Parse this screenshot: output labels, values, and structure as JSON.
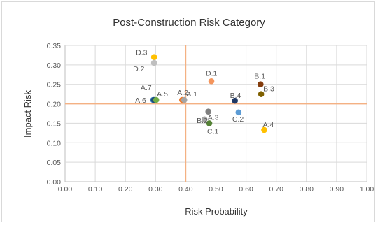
{
  "chart_data": {
    "type": "scatter",
    "title": "Post-Construction Risk Category",
    "xlabel": "Risk Probability",
    "ylabel": "Impact Risk",
    "xlim": [
      0,
      1
    ],
    "ylim": [
      0,
      0.35
    ],
    "x_ticks": [
      "0.00",
      "0.10",
      "0.20",
      "0.30",
      "0.40",
      "0.50",
      "0.60",
      "0.70",
      "0.80",
      "0.90",
      "1.00"
    ],
    "y_ticks": [
      "0.00",
      "0.05",
      "0.10",
      "0.15",
      "0.20",
      "0.25",
      "0.30",
      "0.35"
    ],
    "grid": true,
    "reference_lines": {
      "x": 0.4,
      "y": 0.2,
      "color": "#f4b183"
    },
    "points": [
      {
        "label": "D.3",
        "x": 0.295,
        "y": 0.32,
        "color": "#ffc000"
      },
      {
        "label": "D.2",
        "x": 0.295,
        "y": 0.305,
        "color": "#bfbfbf"
      },
      {
        "label": "A.7",
        "x": 0.292,
        "y": 0.21,
        "color": "#2e75b6"
      },
      {
        "label": "A.6",
        "x": 0.295,
        "y": 0.21,
        "color": "#1f4e79"
      },
      {
        "label": "A.5",
        "x": 0.302,
        "y": 0.21,
        "color": "#70ad47"
      },
      {
        "label": "A.2",
        "x": 0.388,
        "y": 0.21,
        "color": "#ed7d31"
      },
      {
        "label": "A.1",
        "x": 0.395,
        "y": 0.21,
        "color": "#a5a5a5"
      },
      {
        "label": "D.1",
        "x": 0.485,
        "y": 0.258,
        "color": "#f4955d"
      },
      {
        "label": "B.4",
        "x": 0.563,
        "y": 0.208,
        "color": "#1f3864"
      },
      {
        "label": "B.1",
        "x": 0.648,
        "y": 0.25,
        "color": "#843c0c"
      },
      {
        "label": "B.3",
        "x": 0.65,
        "y": 0.225,
        "color": "#7f6000"
      },
      {
        "label": "A.3",
        "x": 0.475,
        "y": 0.18,
        "color": "#7f7f7f"
      },
      {
        "label": "B.2",
        "x": 0.462,
        "y": 0.16,
        "color": "#a5a5a5"
      },
      {
        "label": "C.2",
        "x": 0.575,
        "y": 0.178,
        "color": "#5b9bd5"
      },
      {
        "label": "C.1",
        "x": 0.478,
        "y": 0.15,
        "color": "#548235"
      },
      {
        "label": "A.4",
        "x": 0.66,
        "y": 0.133,
        "color": "#ffc000"
      }
    ]
  }
}
